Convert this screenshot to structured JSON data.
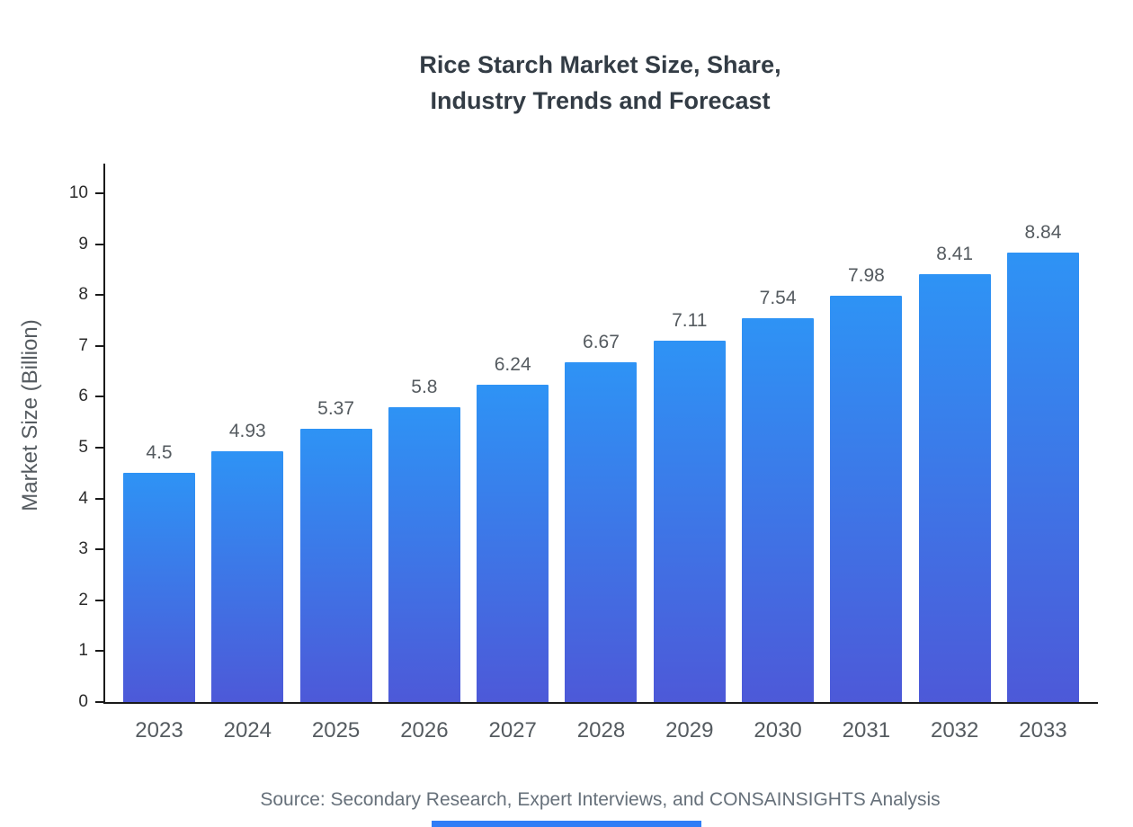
{
  "title": {
    "line1": "Rice Starch Market Size, Share,",
    "line2": "Industry Trends and Forecast"
  },
  "source": "Source: Secondary Research, Expert Interviews, and CONSAINSIGHTS Analysis",
  "colors": {
    "bar_top": "#2e93f5",
    "bar_bottom": "#4d59d8",
    "axis": "#1a1a1a",
    "accent_bar": "#2f7df6"
  },
  "chart_data": {
    "type": "bar",
    "title": "Rice Starch Market Size, Share, Industry Trends and Forecast",
    "categories": [
      "2023",
      "2024",
      "2025",
      "2026",
      "2027",
      "2028",
      "2029",
      "2030",
      "2031",
      "2032",
      "2033"
    ],
    "values": [
      4.5,
      4.93,
      5.37,
      5.8,
      6.24,
      6.67,
      7.11,
      7.54,
      7.98,
      8.41,
      8.84
    ],
    "bar_value_labels": [
      "4.5",
      "4.93",
      "5.37",
      "5.8",
      "6.24",
      "6.67",
      "7.11",
      "7.54",
      "7.98",
      "8.41",
      "8.84"
    ],
    "xlabel": "",
    "ylabel": "Market Size (Billion)",
    "ylim": [
      0,
      10
    ],
    "yticks": [
      0,
      1,
      2,
      3,
      4,
      5,
      6,
      7,
      8,
      9,
      10
    ],
    "grid": false,
    "legend": "none"
  }
}
